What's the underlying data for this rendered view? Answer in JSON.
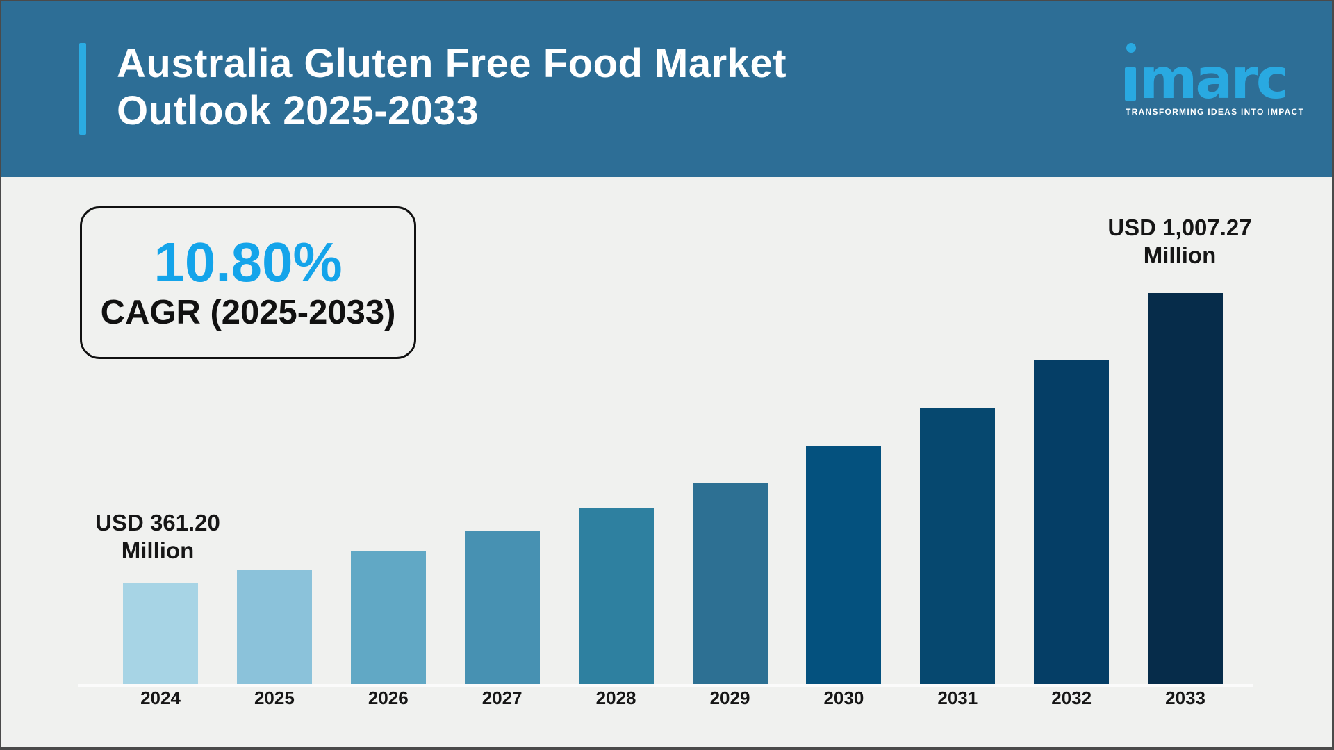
{
  "page": {
    "background_color": "#f0f1ef",
    "frame_color": "#4a4a4a"
  },
  "header": {
    "title_line1": "Australia Gluten Free Food Market",
    "title_line2": "Outlook 2025-2033",
    "background_color": "#2d6e96",
    "accent_bar_color": "#2bace3",
    "text_color": "#ffffff"
  },
  "brand": {
    "logo_text": "imarc",
    "logo_color": "#29a9e1",
    "tagline": "TRANSFORMING IDEAS INTO IMPACT",
    "tagline_color": "#ffffff"
  },
  "cagr_box": {
    "value": "10.80%",
    "value_color": "#14a4ea",
    "label": "CAGR (2025-2033)",
    "label_color": "#111111",
    "border_color": "#111111"
  },
  "chart_data": {
    "type": "bar",
    "title": "Australia Gluten Free Food Market Outlook 2025-2033",
    "categories": [
      "2024",
      "2025",
      "2026",
      "2027",
      "2028",
      "2029",
      "2030",
      "2031",
      "2032",
      "2033"
    ],
    "values": [
      361.2,
      391,
      432,
      477,
      528,
      585,
      667,
      751,
      859,
      1007.27
    ],
    "value_unit": "USD Million",
    "visible_value_labels": {
      "2024": "USD 361.20 Million",
      "2033": "USD 1,007.27 Million"
    },
    "annotations": {
      "first_bar": {
        "line1": "USD 361.20",
        "line2": "Million"
      },
      "last_bar": {
        "line1": "USD 1,007.27",
        "line2": "Million"
      }
    },
    "bar_colors": [
      "#a7d4e5",
      "#8bc2da",
      "#61a8c5",
      "#4791b2",
      "#2e80a0",
      "#2d7093",
      "#04517e",
      "#06486f",
      "#053e66",
      "#062c4a"
    ],
    "axis": {
      "implied_value_min": 137,
      "gridlines": false,
      "baseline_line_color": "#fbfbfb",
      "x_labels_color": "#161616"
    },
    "legend_position": "none"
  }
}
